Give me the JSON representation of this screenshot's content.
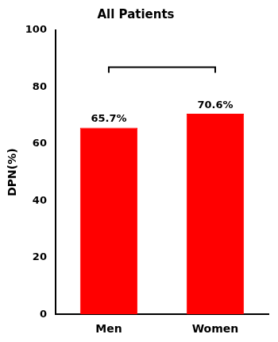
{
  "chart_data": {
    "type": "bar",
    "title": "All Patients",
    "ylabel": "DPN(%)",
    "categories": [
      "Men",
      "Women"
    ],
    "values": [
      65.7,
      70.6
    ],
    "value_labels": [
      "65.7%",
      "70.6%"
    ],
    "data_labels": true,
    "color": "#FF0000",
    "ylim": [
      0,
      100
    ],
    "yticks": [
      0,
      20,
      40,
      60,
      80,
      100
    ],
    "grid": false,
    "significance_bracket": {
      "from": "Men",
      "to": "Women",
      "y": 87,
      "drop": 2
    }
  }
}
